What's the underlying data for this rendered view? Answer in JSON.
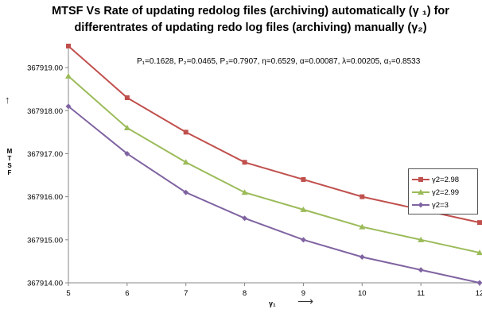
{
  "chart_data": {
    "type": "line",
    "title_line1": "MTSF Vs Rate of  updating redolog files (archiving) automatically (γ ₁) for",
    "title_line2": "differentrates of  updating redo log files (archiving) manually (γ₂)",
    "ylabel": "MTSF",
    "xlabel": "γ₁",
    "annotation": "P₁=0.1628, P₂=0.0465, P₃=0.7907, η=0.6529, α=0.00087, λ=0.00205, α₁=0.8533",
    "x": [
      5,
      6,
      7,
      8,
      9,
      10,
      11,
      12
    ],
    "xlim": [
      5,
      12
    ],
    "ylim": [
      367914.0,
      367919.5
    ],
    "xticks": [
      "5",
      "6",
      "7",
      "8",
      "9",
      "10",
      "11",
      "12"
    ],
    "yticks": [
      {
        "value": 367914.0,
        "label": "367914.00"
      },
      {
        "value": 367915.0,
        "label": "367915.00"
      },
      {
        "value": 367916.0,
        "label": "367916.00"
      },
      {
        "value": 367917.0,
        "label": "367917.00"
      },
      {
        "value": 367918.0,
        "label": "367918.00"
      },
      {
        "value": 367919.0,
        "label": "367919.00"
      }
    ],
    "grid": false,
    "legend_position": "right",
    "series": [
      {
        "name": "γ2=2.98",
        "color": "#c0504d",
        "marker": "square",
        "values": [
          367919.5,
          367918.3,
          367917.5,
          367916.8,
          367916.4,
          367916.0,
          367915.7,
          367915.4
        ]
      },
      {
        "name": "γ2=2.99",
        "color": "#9bbb59",
        "marker": "triangle",
        "values": [
          367918.8,
          367917.6,
          367916.8,
          367916.1,
          367915.7,
          367915.3,
          367915.0,
          367914.7
        ]
      },
      {
        "name": "γ2=3",
        "color": "#8064a2",
        "marker": "diamond",
        "values": [
          367918.1,
          367917.0,
          367916.1,
          367915.5,
          367915.0,
          367914.6,
          367914.3,
          367914.0
        ]
      }
    ]
  }
}
